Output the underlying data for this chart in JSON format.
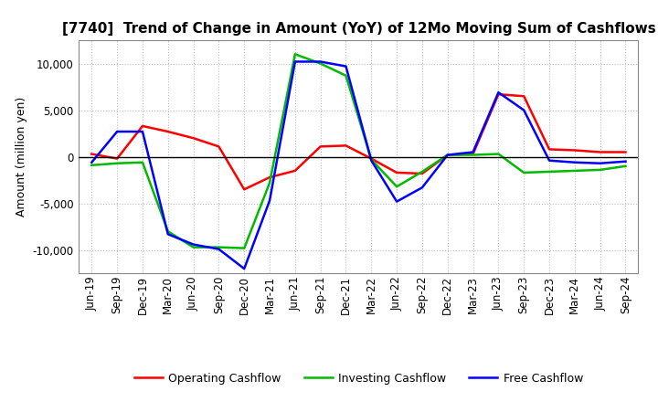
{
  "title": "[7740]  Trend of Change in Amount (YoY) of 12Mo Moving Sum of Cashflows",
  "ylabel": "Amount (million yen)",
  "x_labels": [
    "Jun-19",
    "Sep-19",
    "Dec-19",
    "Mar-20",
    "Jun-20",
    "Sep-20",
    "Dec-20",
    "Mar-21",
    "Jun-21",
    "Sep-21",
    "Dec-21",
    "Mar-22",
    "Jun-22",
    "Sep-22",
    "Dec-22",
    "Mar-23",
    "Jun-23",
    "Sep-23",
    "Dec-23",
    "Mar-24",
    "Jun-24",
    "Sep-24"
  ],
  "operating": [
    300,
    -200,
    3300,
    2700,
    2000,
    1100,
    -3500,
    -2200,
    -1500,
    1100,
    1200,
    -200,
    -1700,
    -1800,
    200,
    300,
    6700,
    6500,
    800,
    700,
    500,
    500
  ],
  "investing": [
    -900,
    -700,
    -600,
    -8000,
    -9700,
    -9700,
    -9800,
    -2800,
    11000,
    10000,
    8700,
    -300,
    -3200,
    -1600,
    200,
    200,
    300,
    -1700,
    -1600,
    -1500,
    -1400,
    -1000
  ],
  "free": [
    -600,
    2700,
    2700,
    -8300,
    -9400,
    -9900,
    -12000,
    -4700,
    10200,
    10200,
    9700,
    -400,
    -4800,
    -3300,
    200,
    500,
    6900,
    5000,
    -400,
    -600,
    -700,
    -500
  ],
  "operating_color": "#FF0000",
  "investing_color": "#00BB00",
  "free_color": "#0000FF",
  "ylim": [
    -12500,
    12500
  ],
  "yticks": [
    -10000,
    -5000,
    0,
    5000,
    10000
  ],
  "background_color": "#FFFFFF",
  "grid_color": "#BBBBBB",
  "title_fontsize": 11,
  "axis_fontsize": 8.5,
  "ylabel_fontsize": 9,
  "legend_fontsize": 9
}
